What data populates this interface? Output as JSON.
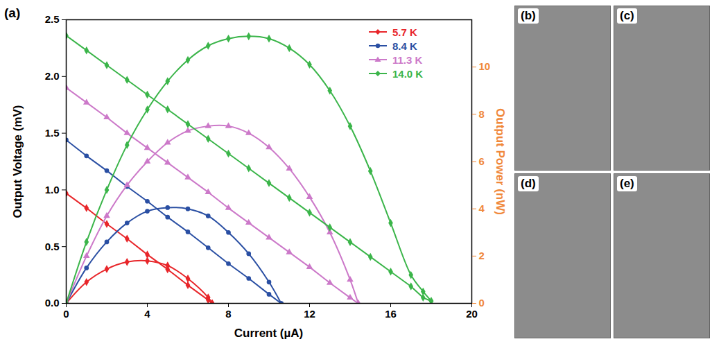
{
  "chart_data": {
    "type": "line",
    "panel_label": "(a)",
    "xlabel": "Current (µA)",
    "ylabel": "Output Voltage (mV)",
    "y2label": "Output Power (nW)",
    "xlim": [
      0,
      20
    ],
    "xticks": [
      0,
      4,
      8,
      12,
      16,
      20
    ],
    "ylim": [
      0,
      2.5
    ],
    "yticks": [
      {
        "value": 0,
        "label": "0.0"
      },
      0.5,
      {
        "value": 1,
        "label": "1.0"
      },
      1.5,
      {
        "value": 2,
        "label": "2.0"
      },
      2.5
    ],
    "y2lim": [
      0,
      12
    ],
    "y2ticks": [
      0,
      2,
      4,
      6,
      8,
      10
    ],
    "legend": "top-right",
    "series": [
      {
        "name": "5.7 K",
        "color": "#e8262a",
        "marker": "diamond",
        "x": [
          0,
          1,
          2,
          3,
          4,
          5,
          6,
          7,
          7.2
        ],
        "values": [
          0.97,
          0.84,
          0.7,
          0.57,
          0.43,
          0.3,
          0.16,
          0.03,
          0.0
        ]
      },
      {
        "name": "5.7 K",
        "color": "#e8262a",
        "marker": "diamond",
        "axis": "y2",
        "x": [
          0,
          1,
          2,
          3,
          4,
          5,
          6,
          7,
          7.2
        ],
        "values": [
          0,
          0.9,
          1.45,
          1.75,
          1.8,
          1.6,
          1.05,
          0.25,
          0
        ]
      },
      {
        "name": "8.4 K",
        "color": "#2a4fa3",
        "marker": "circle",
        "x": [
          0,
          1,
          2,
          3,
          4,
          5,
          6,
          7,
          8,
          9,
          10,
          10.6
        ],
        "values": [
          1.44,
          1.3,
          1.17,
          1.03,
          0.9,
          0.76,
          0.63,
          0.49,
          0.35,
          0.22,
          0.08,
          0.0
        ]
      },
      {
        "name": "8.4 K",
        "color": "#2a4fa3",
        "marker": "circle",
        "axis": "y2",
        "x": [
          0,
          1,
          2,
          3,
          4,
          5,
          6,
          7,
          8,
          9,
          10,
          10.6
        ],
        "values": [
          0,
          1.5,
          2.6,
          3.4,
          3.9,
          4.05,
          4.0,
          3.7,
          3.0,
          2.1,
          0.9,
          0
        ]
      },
      {
        "name": "11.3 K",
        "color": "#cc79c9",
        "marker": "triangle",
        "x": [
          0,
          1,
          2,
          3,
          4,
          5,
          6,
          7,
          8,
          9,
          10,
          11,
          12,
          13,
          14,
          14.4
        ],
        "values": [
          1.9,
          1.77,
          1.64,
          1.5,
          1.37,
          1.24,
          1.11,
          0.98,
          0.84,
          0.71,
          0.58,
          0.45,
          0.32,
          0.18,
          0.05,
          0.0
        ]
      },
      {
        "name": "11.3 K",
        "color": "#cc79c9",
        "marker": "triangle",
        "axis": "y2",
        "x": [
          0,
          1,
          2,
          3,
          4,
          5,
          6,
          7,
          8,
          9,
          10,
          11,
          12,
          13,
          14,
          14.4
        ],
        "values": [
          0,
          2.0,
          3.7,
          5.0,
          6.0,
          6.8,
          7.3,
          7.5,
          7.5,
          7.2,
          6.6,
          5.7,
          4.5,
          3.0,
          1.0,
          0
        ]
      },
      {
        "name": "14.0 K",
        "color": "#3bb54a",
        "marker": "diamond",
        "x": [
          0,
          1,
          2,
          3,
          4,
          5,
          6,
          7,
          8,
          9,
          10,
          11,
          12,
          13,
          14,
          15,
          16,
          17,
          17.6,
          18
        ],
        "values": [
          2.36,
          2.23,
          2.1,
          1.97,
          1.84,
          1.71,
          1.58,
          1.45,
          1.32,
          1.19,
          1.06,
          0.93,
          0.8,
          0.67,
          0.54,
          0.41,
          0.28,
          0.15,
          0.05,
          0.02
        ]
      },
      {
        "name": "14.0 K",
        "color": "#3bb54a",
        "marker": "diamond",
        "axis": "y2",
        "x": [
          0,
          1,
          2,
          3,
          4,
          5,
          6,
          7,
          8,
          9,
          10,
          11,
          12,
          13,
          14,
          15,
          16,
          17,
          17.6,
          18
        ],
        "values": [
          0,
          2.6,
          4.8,
          6.7,
          8.2,
          9.4,
          10.3,
          10.9,
          11.2,
          11.3,
          11.2,
          10.8,
          10.1,
          9.0,
          7.5,
          5.6,
          3.4,
          1.2,
          0.5,
          0.1
        ]
      }
    ]
  },
  "photos": {
    "panels": [
      "(b)",
      "(c)",
      "(d)",
      "(e)"
    ]
  }
}
